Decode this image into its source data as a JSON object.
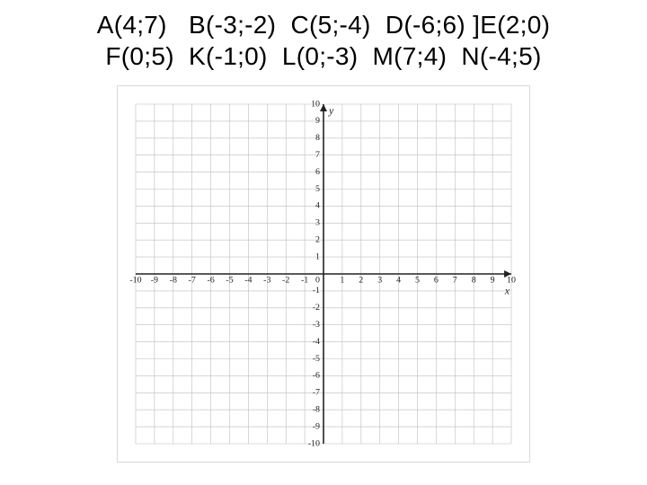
{
  "points_lines": [
    "А(4;7)   В(-3;-2)  С(5;-4)  D(-6;6) ]E(2;0)",
    "F(0;5)  K(-1;0)  L(0;-3)  M(7;4)  N(-4;5)"
  ],
  "chart": {
    "type": "scatter",
    "xlim": [
      -10,
      10
    ],
    "ylim": [
      -10,
      10
    ],
    "tick_step": 1,
    "grid_color": "#bdbdbd",
    "axis_color": "#222222",
    "outer_border_color": "#d9d9d9",
    "background_color": "#ffffff",
    "x_label": "x",
    "y_label": "y",
    "x_ticks_neg": [
      "-10",
      "-9",
      "-8",
      "-7",
      "-6",
      "-5",
      "-4",
      "-3",
      "-2",
      "-1"
    ],
    "x_ticks_pos": [
      "1",
      "2",
      "3",
      "4",
      "5",
      "6",
      "7",
      "8",
      "9",
      "10"
    ],
    "y_ticks_neg": [
      "-1",
      "-2",
      "-3",
      "-4",
      "-5",
      "-6",
      "-7",
      "-8",
      "-9",
      "-10"
    ],
    "y_ticks_pos": [
      "1",
      "2",
      "3",
      "4",
      "5",
      "6",
      "7",
      "8",
      "9",
      "10"
    ],
    "origin_label": "0",
    "tick_fontsize": 10,
    "label_fontsize": 12,
    "axis_line_width": 1.6,
    "grid_line_width": 0.6
  },
  "document": {
    "title_fontsize": 28,
    "title_color": "#000000"
  }
}
